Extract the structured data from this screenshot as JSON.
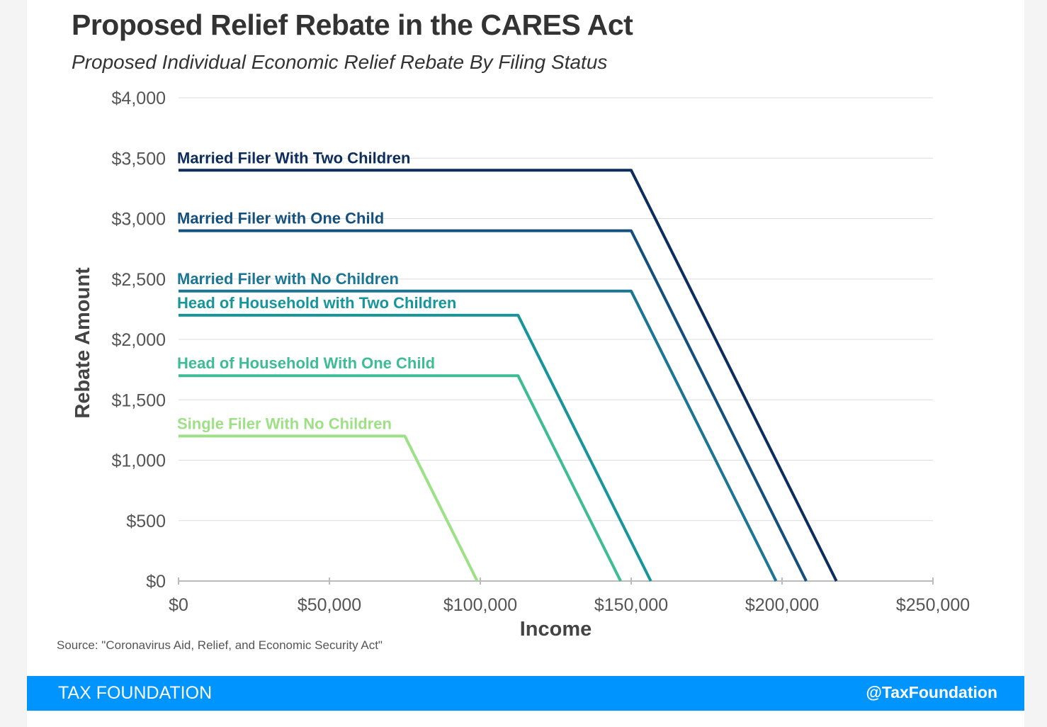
{
  "header": {
    "title": "Proposed Relief Rebate in the CARES Act",
    "subtitle": "Proposed Individual Economic Relief Rebate By Filing Status"
  },
  "source_note": "Source: \"Coronavirus Aid, Relief, and Economic Security Act\"",
  "footer": {
    "brand": "TAX FOUNDATION",
    "handle": "@TaxFoundation",
    "bar_color": "#0094ff"
  },
  "chart_data": {
    "type": "line",
    "title": "Proposed Relief Rebate in the CARES Act",
    "subtitle": "Proposed Individual Economic Relief Rebate By Filing Status",
    "xlabel": "Income",
    "ylabel": "Rebate Amount",
    "xlim": [
      0,
      250000
    ],
    "ylim": [
      0,
      4000
    ],
    "x_ticks": [
      0,
      50000,
      100000,
      150000,
      200000,
      250000
    ],
    "x_tick_labels": [
      "$0",
      "$50,000",
      "$100,000",
      "$150,000",
      "$200,000",
      "$250,000"
    ],
    "y_ticks": [
      0,
      500,
      1000,
      1500,
      2000,
      2500,
      3000,
      3500,
      4000
    ],
    "y_tick_labels": [
      "$0",
      "$500",
      "$1,000",
      "$1,500",
      "$2,000",
      "$2,500",
      "$3,000",
      "$3,500",
      "$4,000"
    ],
    "grid": "horizontal",
    "legend": "inline labels above lines",
    "series": [
      {
        "name": "Married Filer With Two Children",
        "color": "#0d2d5c",
        "points": [
          [
            0,
            3400
          ],
          [
            150000,
            3400
          ],
          [
            218000,
            0
          ]
        ]
      },
      {
        "name": "Married Filer with One Child",
        "color": "#14507e",
        "points": [
          [
            0,
            2900
          ],
          [
            150000,
            2900
          ],
          [
            208000,
            0
          ]
        ]
      },
      {
        "name": "Married Filer with No Children",
        "color": "#1a7694",
        "points": [
          [
            0,
            2400
          ],
          [
            150000,
            2400
          ],
          [
            198000,
            0
          ]
        ]
      },
      {
        "name": "Head of Household with Two Children",
        "color": "#16969b",
        "points": [
          [
            0,
            2200
          ],
          [
            112500,
            2200
          ],
          [
            156500,
            0
          ]
        ]
      },
      {
        "name": "Head of Household With One Child",
        "color": "#3ebc94",
        "points": [
          [
            0,
            1700
          ],
          [
            112500,
            1700
          ],
          [
            146500,
            0
          ]
        ]
      },
      {
        "name": "Single Filer With No Children",
        "color": "#9ee085",
        "points": [
          [
            0,
            1200
          ],
          [
            75000,
            1200
          ],
          [
            99000,
            0
          ]
        ]
      }
    ]
  }
}
